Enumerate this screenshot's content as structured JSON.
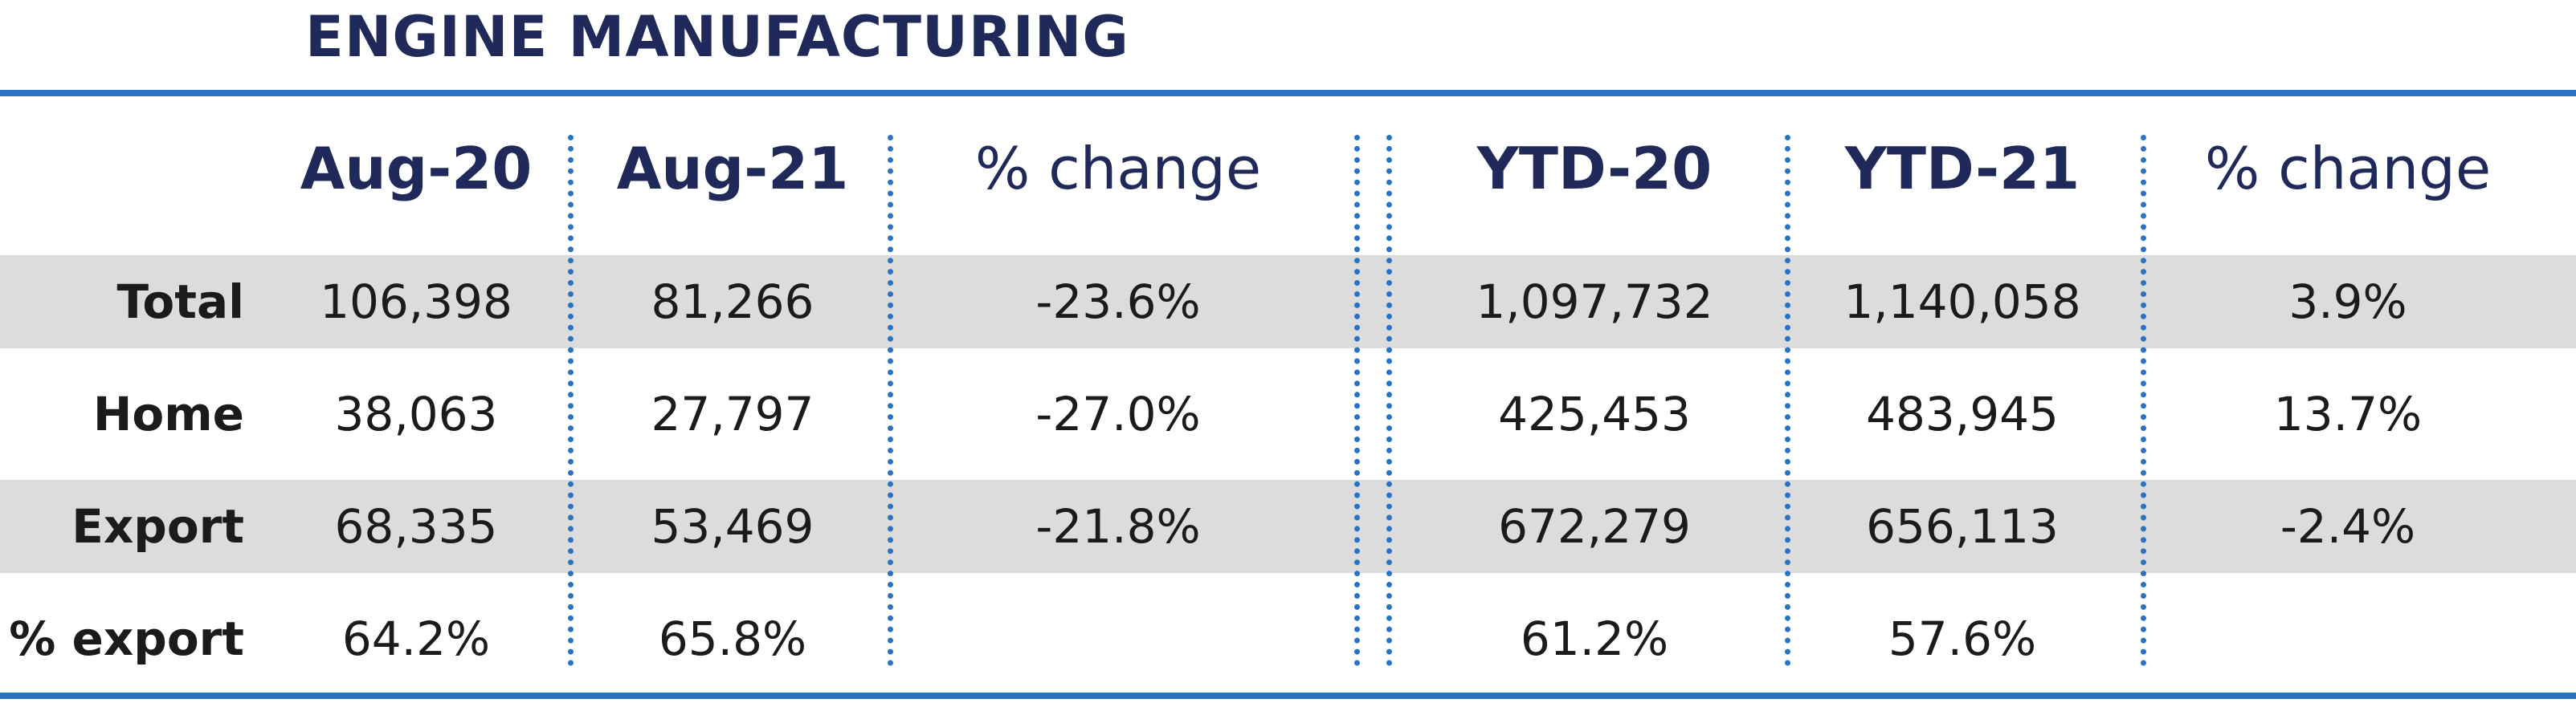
{
  "title": "ENGINE MANUFACTURING",
  "chart_data": {
    "type": "table",
    "title": "ENGINE MANUFACTURING",
    "columns": [
      "Aug-20",
      "Aug-21",
      "% change",
      "YTD-20",
      "YTD-21",
      "% change"
    ],
    "rows": [
      {
        "label": "Total",
        "values": [
          "106,398",
          "81,266",
          "-23.6%",
          "1,097,732",
          "1,140,058",
          "3.9%"
        ]
      },
      {
        "label": "Home",
        "values": [
          "38,063",
          "27,797",
          "-27.0%",
          "425,453",
          "483,945",
          "13.7%"
        ]
      },
      {
        "label": "Export",
        "values": [
          "68,335",
          "53,469",
          "-21.8%",
          "672,279",
          "656,113",
          "-2.4%"
        ]
      },
      {
        "label": "% export",
        "values": [
          "64.2%",
          "65.8%",
          "",
          "61.2%",
          "57.6%",
          ""
        ]
      }
    ],
    "header_bold": [
      true,
      true,
      false,
      true,
      true,
      false
    ],
    "accent_color": "#2a73c2",
    "title_color": "#1f2a5a",
    "band_color": "#dcdcdc"
  }
}
